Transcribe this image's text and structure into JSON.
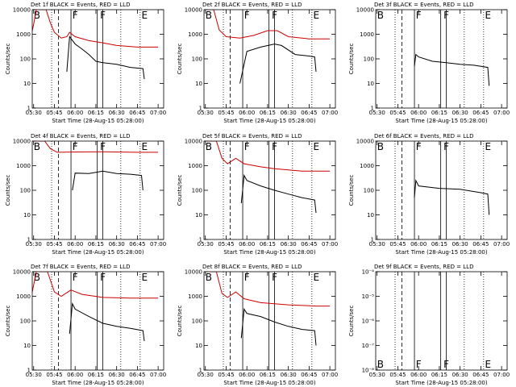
{
  "shared": {
    "x_label": "Start Time (28-Aug-15 05:28:00)",
    "y_label": "Counts/sec",
    "y_scale": "log",
    "xlim": [
      "05:29",
      "07:04"
    ],
    "xticks": [
      "05:30",
      "05:45",
      "06:00",
      "06:15",
      "06:30",
      "06:45",
      "07:00"
    ],
    "markers": [
      {
        "x": "05:43",
        "style": "dotted"
      },
      {
        "x": "05:48",
        "style": "dashed"
      },
      {
        "x": "05:57",
        "style": "solid"
      },
      {
        "x": "06:16",
        "style": "solid"
      },
      {
        "x": "06:20",
        "style": "solid"
      },
      {
        "x": "06:33",
        "style": "dotted"
      },
      {
        "x": "06:47",
        "style": "dotted"
      }
    ],
    "annotations": [
      {
        "x": "05:30",
        "text": "B"
      },
      {
        "x": "05:58",
        "text": "F"
      },
      {
        "x": "06:18",
        "text": "F"
      },
      {
        "x": "06:48",
        "text": "E"
      }
    ]
  },
  "chart_data": [
    {
      "type": "line",
      "title": "Det 1f BLACK = Events, RED = LLD",
      "ylim": [
        1,
        10000
      ],
      "yticks": [
        1,
        10,
        100,
        1000,
        10000
      ],
      "annotation_pos": "top",
      "series": [
        {
          "color": "#cc0000",
          "x": [
            "05:28",
            "05:30",
            "05:32",
            "05:39",
            "05:42",
            "05:45",
            "05:50",
            "05:54",
            "05:56",
            "06:00",
            "06:10",
            "06:20",
            "06:30",
            "06:45",
            "07:00"
          ],
          "values": [
            800,
            2500,
            10000,
            10000,
            3000,
            1200,
            700,
            800,
            1200,
            800,
            550,
            450,
            350,
            300,
            300
          ]
        },
        {
          "color": "#000000",
          "x": [
            "05:54",
            "05:56",
            "06:00",
            "06:05",
            "06:10",
            "06:15",
            "06:20",
            "06:30",
            "06:40",
            "06:49",
            "06:50"
          ],
          "values": [
            30,
            800,
            400,
            250,
            150,
            80,
            70,
            60,
            45,
            40,
            15
          ]
        }
      ]
    },
    {
      "type": "line",
      "title": "Det 2f BLACK = Events, RED = LLD",
      "ylim": [
        1,
        10000
      ],
      "yticks": [
        1,
        10,
        100,
        1000,
        10000
      ],
      "annotation_pos": "top",
      "series": [
        {
          "color": "#cc0000",
          "x": [
            "05:28",
            "05:36",
            "05:40",
            "05:45",
            "05:55",
            "06:05",
            "06:15",
            "06:22",
            "06:30",
            "06:45",
            "07:00"
          ],
          "values": [
            10000,
            10000,
            1500,
            800,
            700,
            900,
            1400,
            1400,
            800,
            650,
            650
          ]
        },
        {
          "color": "#000000",
          "x": [
            "05:55",
            "06:00",
            "06:10",
            "06:20",
            "06:25",
            "06:35",
            "06:45",
            "06:49",
            "06:50"
          ],
          "values": [
            10,
            200,
            300,
            400,
            350,
            150,
            130,
            120,
            30
          ]
        }
      ]
    },
    {
      "type": "line",
      "title": "Det 3f BLACK = Events, RED = LLD",
      "ylim": [
        1,
        10000
      ],
      "yticks": [
        1,
        10,
        100,
        1000,
        10000
      ],
      "annotation_pos": "top",
      "series": [
        {
          "color": "#000000",
          "x": [
            "05:57",
            "05:58",
            "06:00",
            "06:10",
            "06:20",
            "06:30",
            "06:40",
            "06:50",
            "06:51"
          ],
          "values": [
            50,
            150,
            120,
            80,
            70,
            60,
            55,
            45,
            8
          ]
        }
      ]
    },
    {
      "type": "line",
      "title": "Det 4f BLACK = Events, RED = LLD",
      "ylim": [
        1,
        10000
      ],
      "yticks": [
        1,
        10,
        100,
        1000,
        10000
      ],
      "annotation_pos": "top",
      "series": [
        {
          "color": "#cc0000",
          "x": [
            "05:28",
            "05:38",
            "05:42",
            "05:47",
            "06:00",
            "06:20",
            "06:45",
            "07:00"
          ],
          "values": [
            10000,
            10000,
            5000,
            3500,
            3600,
            3700,
            3500,
            3500
          ]
        },
        {
          "color": "#000000",
          "x": [
            "05:58",
            "06:00",
            "06:10",
            "06:20",
            "06:30",
            "06:40",
            "06:48",
            "06:49"
          ],
          "values": [
            100,
            500,
            480,
            600,
            480,
            450,
            400,
            100
          ]
        }
      ]
    },
    {
      "type": "line",
      "title": "Det 5f BLACK = Events, RED = LLD",
      "ylim": [
        1,
        10000
      ],
      "yticks": [
        1,
        10,
        100,
        1000,
        10000
      ],
      "annotation_pos": "top",
      "series": [
        {
          "color": "#cc0000",
          "x": [
            "05:28",
            "05:38",
            "05:42",
            "05:46",
            "05:52",
            "05:58",
            "06:10",
            "06:20",
            "06:40",
            "07:00"
          ],
          "values": [
            10000,
            10000,
            2000,
            1200,
            2000,
            1200,
            900,
            750,
            600,
            600
          ]
        },
        {
          "color": "#000000",
          "x": [
            "05:56",
            "05:58",
            "06:00",
            "06:10",
            "06:20",
            "06:30",
            "06:40",
            "06:49",
            "06:50"
          ],
          "values": [
            30,
            400,
            250,
            150,
            100,
            70,
            50,
            40,
            12
          ]
        }
      ]
    },
    {
      "type": "line",
      "title": "Det 6f BLACK = Events, RED = LLD",
      "ylim": [
        1,
        10000
      ],
      "yticks": [
        1,
        10,
        100,
        1000,
        10000
      ],
      "annotation_pos": "top",
      "series": [
        {
          "color": "#000000",
          "x": [
            "05:57",
            "05:58",
            "06:00",
            "06:15",
            "06:30",
            "06:45",
            "06:50",
            "06:51"
          ],
          "values": [
            50,
            250,
            150,
            120,
            110,
            80,
            70,
            10
          ]
        }
      ]
    },
    {
      "type": "line",
      "title": "Det 7f BLACK = Events, RED = LLD",
      "ylim": [
        1,
        10000
      ],
      "yticks": [
        1,
        10,
        100,
        1000,
        10000
      ],
      "annotation_pos": "top",
      "series": [
        {
          "color": "#cc0000",
          "x": [
            "05:28",
            "05:32",
            "05:40",
            "05:45",
            "05:50",
            "05:57",
            "06:05",
            "06:20",
            "06:40",
            "07:00"
          ],
          "values": [
            800,
            10000,
            10000,
            1500,
            1000,
            1800,
            1200,
            900,
            850,
            850
          ]
        },
        {
          "color": "#000000",
          "x": [
            "05:56",
            "05:58",
            "06:00",
            "06:10",
            "06:20",
            "06:30",
            "06:40",
            "06:49",
            "06:50"
          ],
          "values": [
            30,
            500,
            300,
            150,
            80,
            60,
            50,
            40,
            15
          ]
        }
      ]
    },
    {
      "type": "line",
      "title": "Det 8f BLACK = Events, RED = LLD",
      "ylim": [
        1,
        10000
      ],
      "yticks": [
        1,
        10,
        100,
        1000,
        10000
      ],
      "annotation_pos": "top",
      "series": [
        {
          "color": "#cc0000",
          "x": [
            "05:28",
            "05:38",
            "05:42",
            "05:46",
            "05:52",
            "05:58",
            "06:10",
            "06:30",
            "06:50",
            "07:00"
          ],
          "values": [
            10000,
            10000,
            1300,
            900,
            1500,
            800,
            550,
            450,
            400,
            400
          ]
        },
        {
          "color": "#000000",
          "x": [
            "05:56",
            "05:58",
            "06:00",
            "06:10",
            "06:20",
            "06:30",
            "06:40",
            "06:49",
            "06:50"
          ],
          "values": [
            20,
            300,
            200,
            150,
            90,
            60,
            45,
            40,
            10
          ]
        }
      ]
    },
    {
      "type": "line",
      "title": "Det 9f BLACK = Events, RED = LLD",
      "ylim": [
        1e-08,
        0.0001
      ],
      "annotation_pos": "bottom",
      "yticks": [
        {
          "value": 1e-08,
          "label": "10⁻⁸"
        },
        {
          "value": 1e-07,
          "label": "10⁻⁷"
        },
        {
          "value": 1e-06,
          "label": "10⁻⁶"
        },
        {
          "value": 1e-05,
          "label": "10⁻⁵"
        },
        {
          "value": 0.0001,
          "label": "10⁻⁴"
        }
      ],
      "series": []
    }
  ]
}
